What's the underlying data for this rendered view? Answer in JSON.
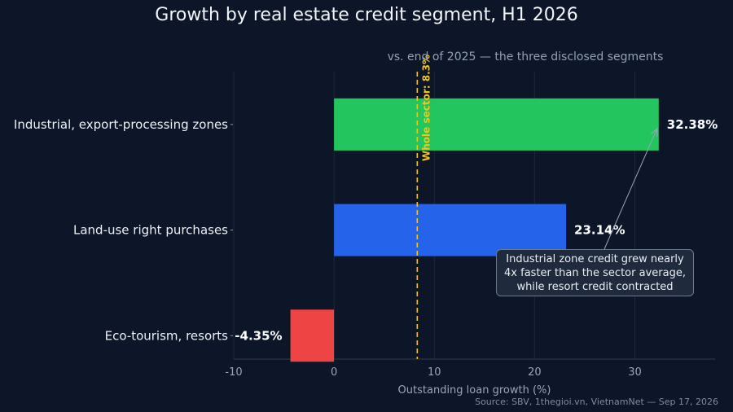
{
  "chart_data": {
    "type": "bar",
    "orientation": "horizontal",
    "title": "Growth by real estate credit segment, H1 2026",
    "subtitle": "vs. end of 2025 — the three disclosed segments",
    "xlabel": "Outstanding loan growth (%)",
    "xlim": [
      -10,
      38
    ],
    "xticks": [
      -10,
      0,
      10,
      20,
      30
    ],
    "categories": [
      "Industrial, export-processing zones",
      "Land-use right purchases",
      "Eco-tourism, resorts"
    ],
    "values": [
      32.38,
      23.14,
      -4.35
    ],
    "value_labels": [
      "32.38%",
      "23.14%",
      "-4.35%"
    ],
    "colors": [
      "#22c55e",
      "#2563eb",
      "#ef4444"
    ],
    "reference_line": {
      "value": 8.3,
      "label": "Whole sector: 8.3%",
      "color": "#f5c518"
    },
    "annotation": {
      "text": "Industrial zone credit grew nearly 4x faster than the sector average, while resort credit contracted",
      "points_to": "Industrial, export-processing zones"
    },
    "grid": "vertical",
    "source": "Source: SBV, 1thegioi.vn, VietnamNet — Sep 17, 2026"
  }
}
